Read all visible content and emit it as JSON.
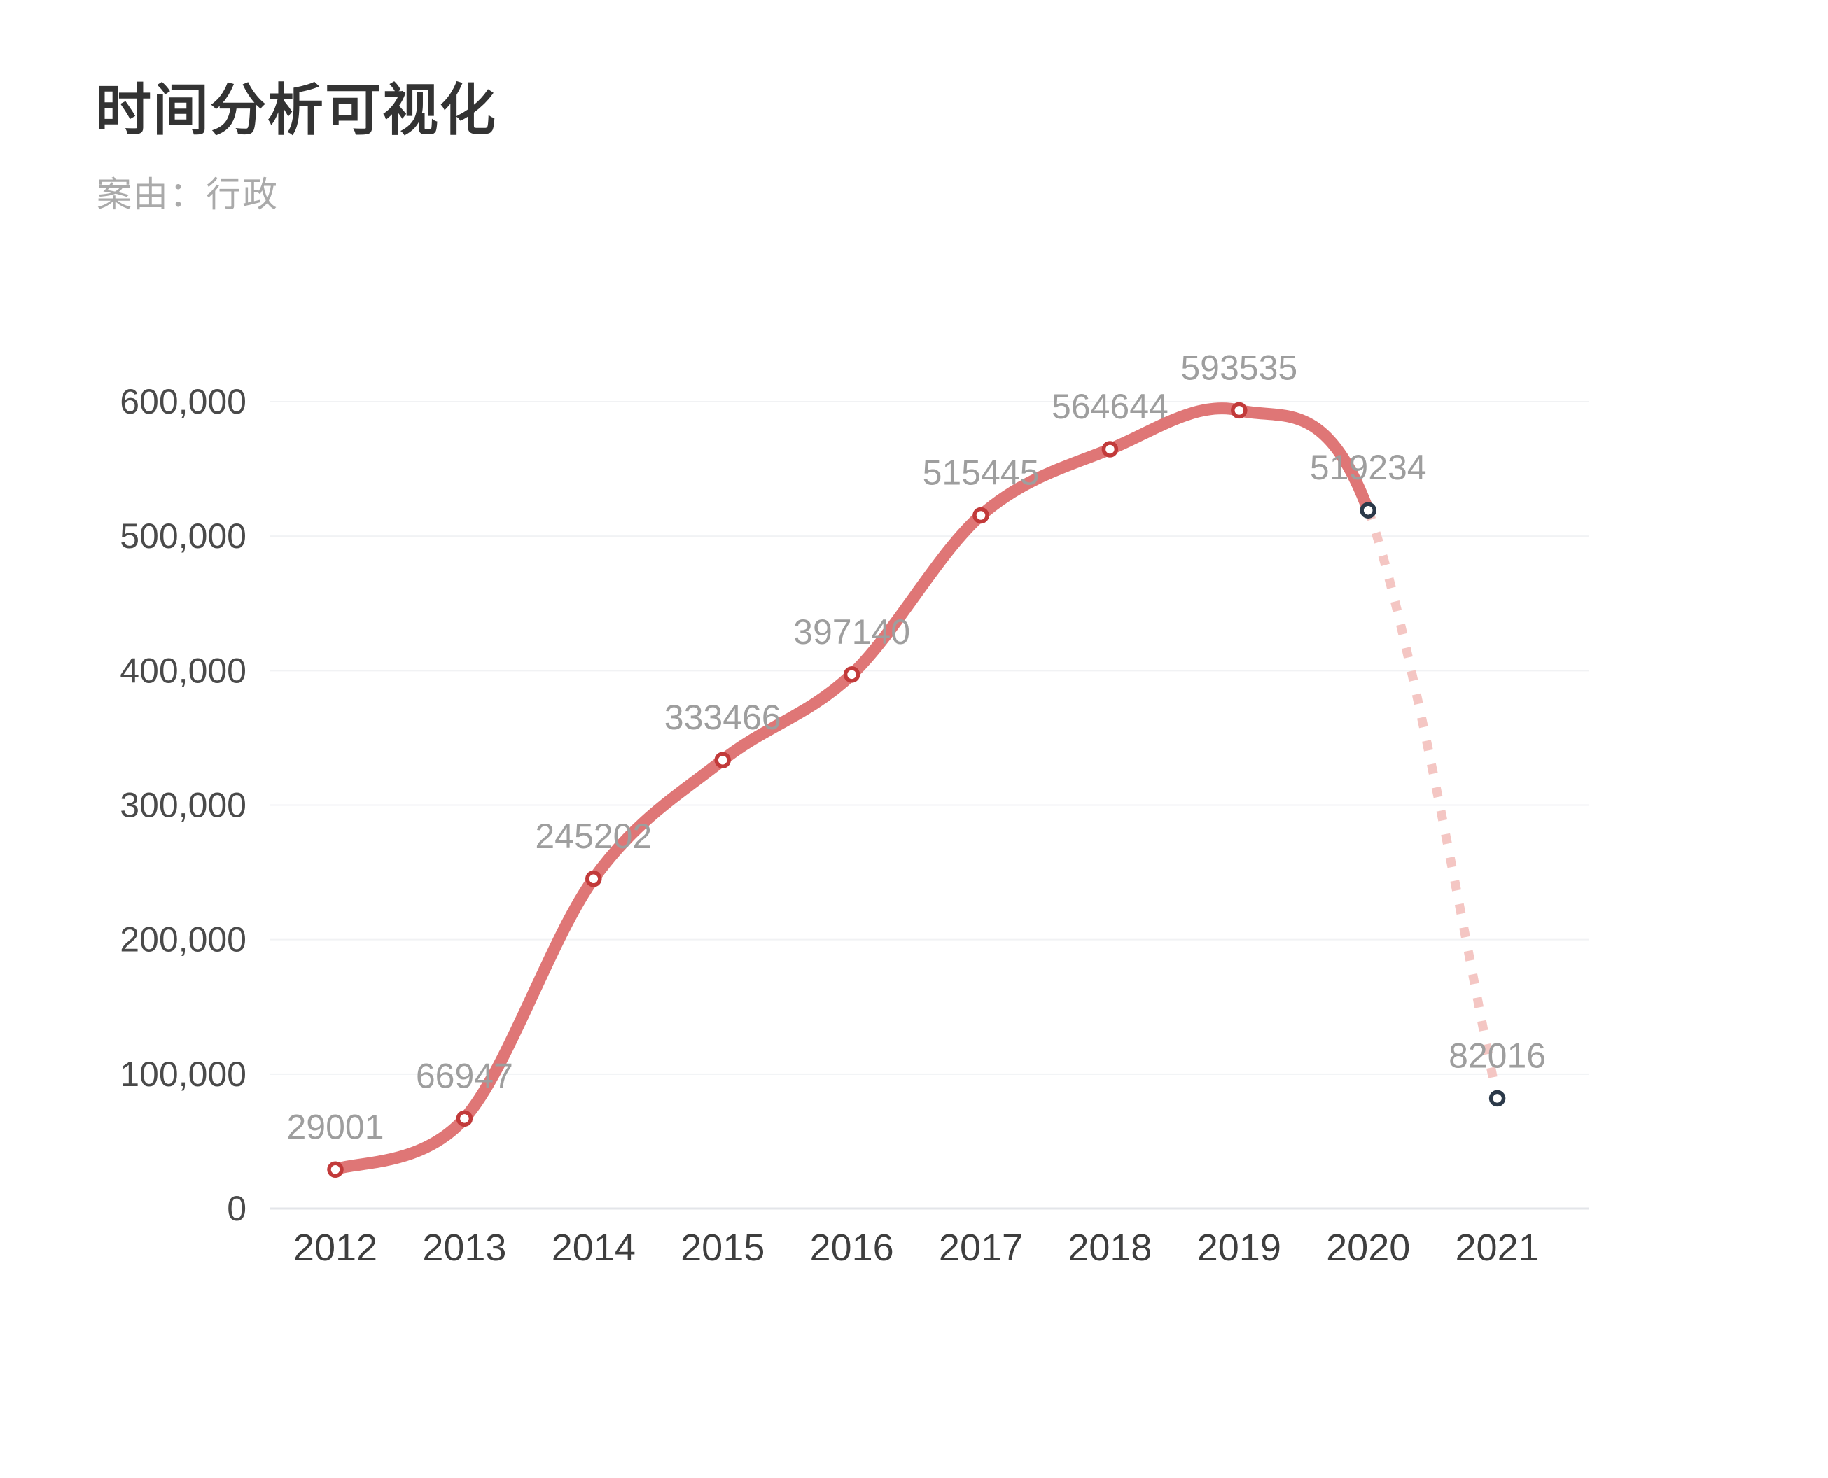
{
  "header": {
    "title": "时间分析可视化",
    "subtitle": "案由：行政"
  },
  "chart_data": {
    "type": "line",
    "title": "时间分析可视化",
    "subtitle": "案由：行政",
    "smooth": true,
    "legend": "none",
    "grid": true,
    "categories": [
      "2012",
      "2013",
      "2014",
      "2015",
      "2016",
      "2017",
      "2018",
      "2019",
      "2020",
      "2021"
    ],
    "values": [
      29001,
      66947,
      245202,
      333466,
      397140,
      515445,
      564644,
      593535,
      519234,
      82016
    ],
    "point_labels": [
      "29001",
      "66947",
      "245202",
      "333466",
      "397140",
      "515445",
      "564644",
      "593535",
      "519234",
      "82016"
    ],
    "xlabel": "",
    "ylabel": "",
    "ylim": [
      0,
      600000
    ],
    "ytick_interval": 100000,
    "ytick_labels": [
      "0",
      "100,000",
      "200,000",
      "300,000",
      "400,000",
      "500,000",
      "600,000"
    ],
    "solid_until_index": 8,
    "dashed_segment": {
      "from_index": 8,
      "to_index": 9,
      "style": "dotted"
    },
    "dark_marker_indices": [
      8,
      9
    ],
    "colors": {
      "line": "#df7676",
      "dashed_line": "#f4c6c3",
      "marker_fill": "#ffffff",
      "marker_stroke": "#c23a3a",
      "marker_stroke_dark": "#2b3949",
      "point_label": "#9e9e9e",
      "ytick_label": "#4a4a4a",
      "xtick_label": "#3e3e3e",
      "gridline": "#f1f2f4",
      "axis_line": "#e3e5e9",
      "title": "#333333",
      "subtitle": "#aaaaaa"
    }
  }
}
